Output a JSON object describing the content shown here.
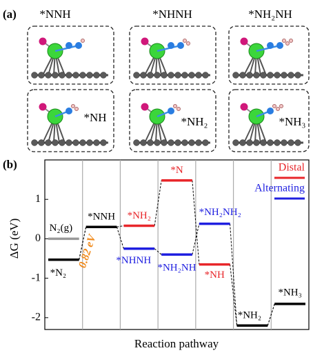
{
  "panel_a": {
    "label": "(a)",
    "titles": [
      "*NNH",
      "*NHNH",
      "*NH₂NH"
    ],
    "structure_labels": [
      "*NH",
      "*NH₂",
      "*NH₃"
    ]
  },
  "chart_data": {
    "type": "energy-levels",
    "panel_label": "(b)",
    "y_label": "ΔG (eV)",
    "x_label": "Reaction pathway",
    "categories": [
      null,
      null,
      null,
      null,
      null,
      null,
      null
    ],
    "ylim": [
      -2.3,
      2
    ],
    "yticks": [
      -2,
      -1,
      0,
      1
    ],
    "grid": true,
    "legend": "upper right",
    "series": [
      {
        "color": "#000000",
        "values": [
          -0.53,
          0.3,
          null,
          null,
          null,
          -2.2,
          -1.65
        ],
        "level_labels": [
          "*N₂",
          "*NNH",
          null,
          null,
          null,
          "*NH₂",
          "*NH₃"
        ]
      },
      {
        "name": "Distal",
        "color": "#e8262a",
        "values": [
          null,
          null,
          0.33,
          1.48,
          -0.65,
          null,
          null
        ],
        "level_labels": [
          null,
          null,
          "*NH₂",
          "*N",
          "*NH",
          null,
          null
        ]
      },
      {
        "name": "Alternating",
        "color": "#1f1fe0",
        "values": [
          null,
          null,
          -0.25,
          -0.4,
          0.38,
          null,
          null
        ],
        "level_labels": [
          null,
          null,
          "*NHNH",
          "*NH₂NH",
          "*NH₂NH₂",
          null,
          null
        ]
      },
      {
        "color": "#999999",
        "values": [
          0,
          null,
          null,
          null,
          null,
          null,
          null
        ],
        "level_labels": [
          "N₂(g)",
          null,
          null,
          null,
          null,
          null,
          null
        ]
      }
    ],
    "annotations": [
      {
        "text": "0.82 eV",
        "color": "#f08a1c"
      }
    ]
  }
}
